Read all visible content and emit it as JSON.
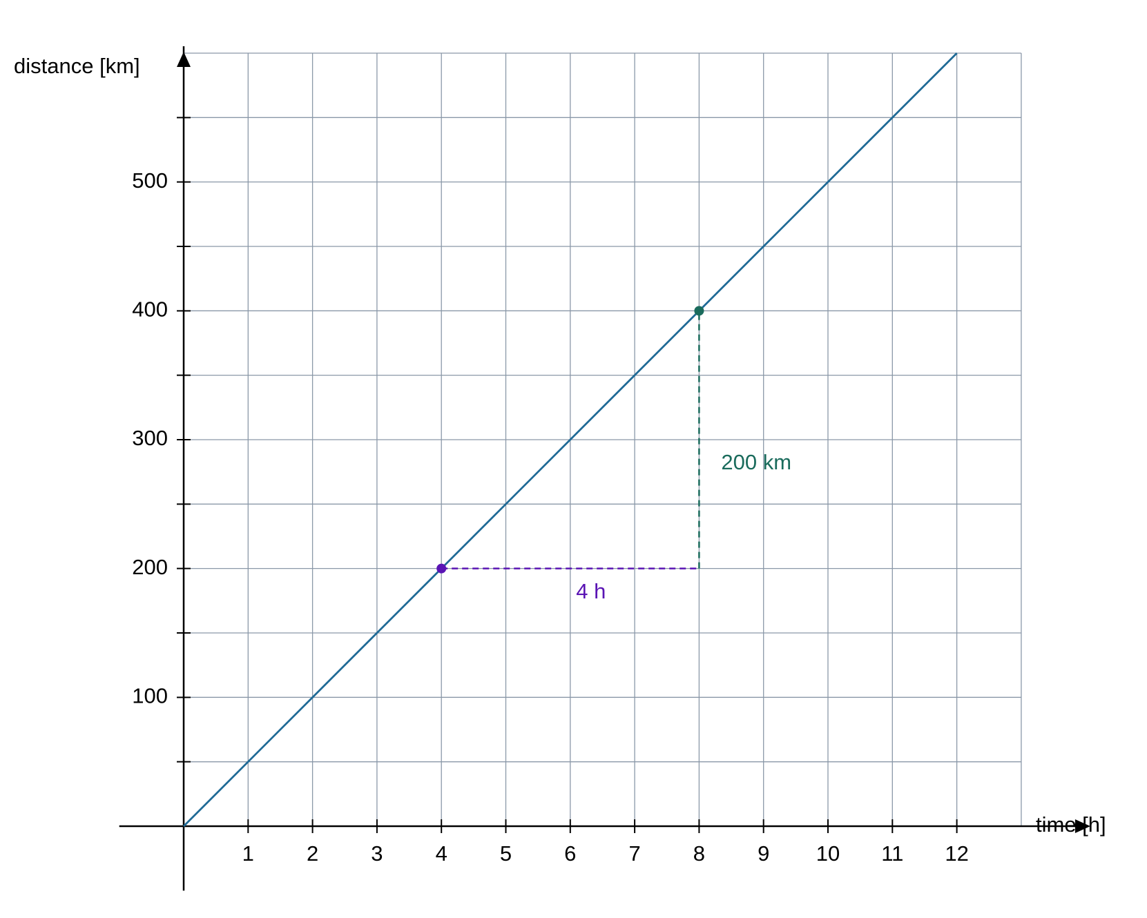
{
  "chart_data": {
    "type": "line",
    "xlabel": "time [h]",
    "ylabel": "distance [km]",
    "x": [
      0,
      12
    ],
    "series": [
      {
        "color": "#1f6a96",
        "values": [
          0,
          600
        ]
      }
    ],
    "xlim": [
      -1,
      13
    ],
    "ylim": [
      -50,
      600
    ],
    "xticks": [
      1,
      2,
      3,
      4,
      5,
      6,
      7,
      8,
      9,
      10,
      11,
      12
    ],
    "yticks": [
      100,
      200,
      300,
      400,
      500
    ],
    "yminor": [
      50,
      150,
      250,
      350,
      450,
      550
    ],
    "grid": true,
    "grid_color": "#8a98a8",
    "points": [
      {
        "x": 4,
        "y": 200,
        "color": "#5a14b4",
        "label": "4 h"
      },
      {
        "x": 8,
        "y": 400,
        "color": "#1a6b5c",
        "label": "200 km"
      }
    ]
  }
}
